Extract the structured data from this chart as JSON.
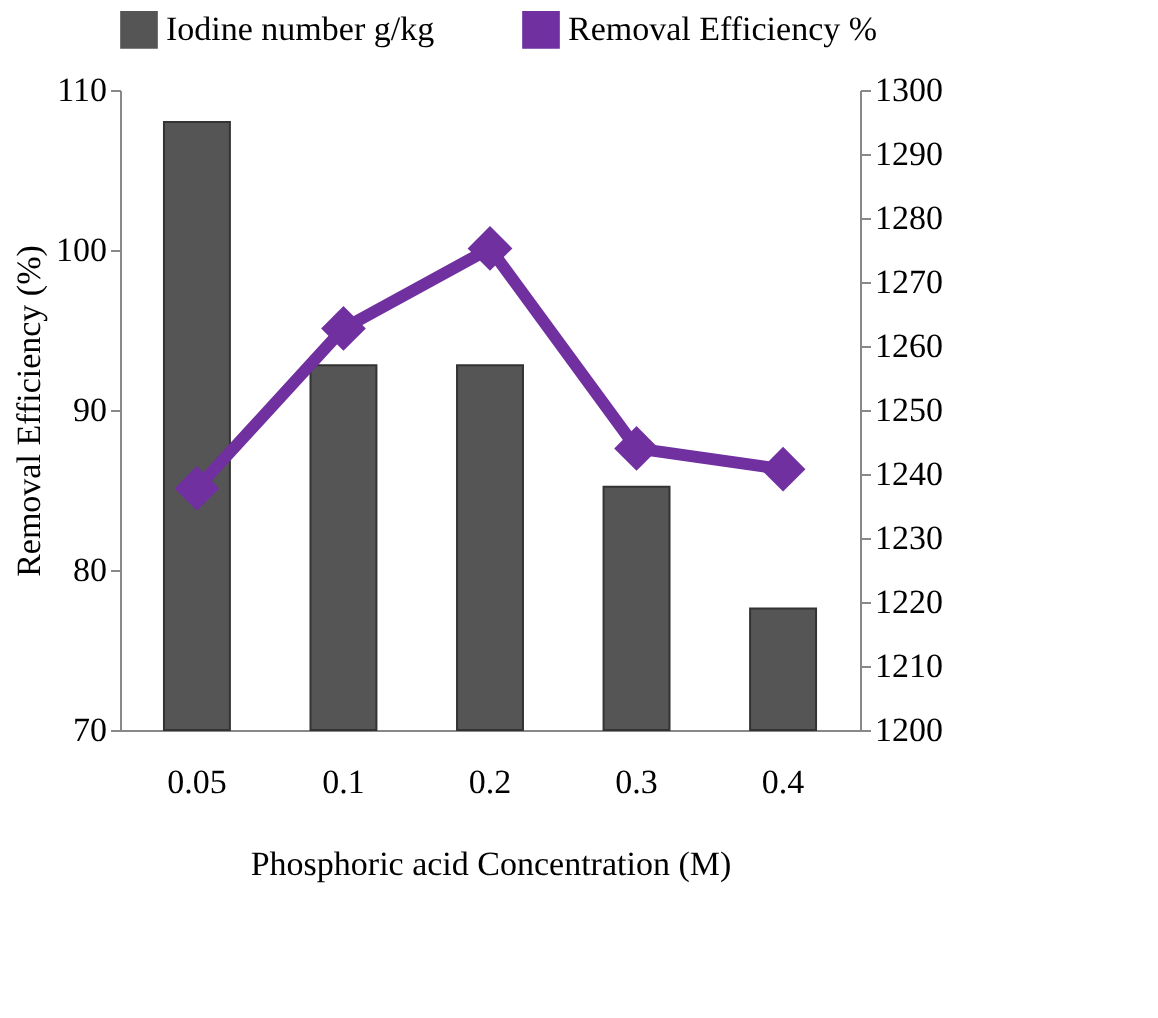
{
  "chart_data": {
    "type": "bar",
    "xlabel": "Phosphoric acid Concentration (M)",
    "ylabel": "Removal Efficiency (%)",
    "categories": [
      "0.05",
      "0.1",
      "0.2",
      "0.3",
      "0.4"
    ],
    "series": [
      {
        "name": "Iodine number g/kg",
        "color": "#555555",
        "axis": "y2",
        "values": [
          1295,
          1257,
          1257,
          1238,
          1219
        ]
      },
      {
        "name": "Removal Efficiency %",
        "color": "#7030a0",
        "type": "line",
        "marker": "diamond",
        "values": [
          85.1,
          95.1,
          100.1,
          87.6,
          86.3
        ]
      }
    ],
    "ylim": [
      70,
      110
    ],
    "yticks": [
      70,
      80,
      90,
      100,
      110
    ],
    "y2lim": [
      1200,
      1300
    ],
    "y2ticks": [
      1200,
      1210,
      1220,
      1230,
      1240,
      1250,
      1260,
      1270,
      1280,
      1290,
      1300
    ],
    "grid": false,
    "legend": "top"
  }
}
